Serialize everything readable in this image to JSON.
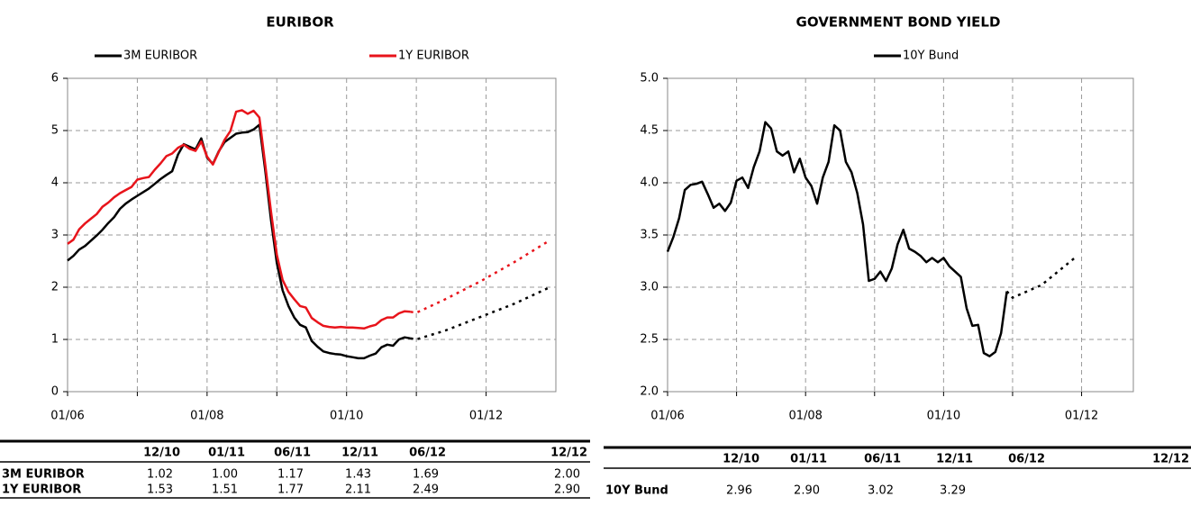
{
  "chart_data": [
    {
      "type": "line",
      "title": "EURIBOR",
      "x": [
        "01/06",
        "02/06",
        "03/06",
        "04/06",
        "05/06",
        "06/06",
        "07/06",
        "08/06",
        "09/06",
        "10/06",
        "11/06",
        "12/06",
        "01/07",
        "02/07",
        "03/07",
        "04/07",
        "05/07",
        "06/07",
        "07/07",
        "08/07",
        "09/07",
        "10/07",
        "11/07",
        "12/07",
        "01/08",
        "02/08",
        "03/08",
        "04/08",
        "05/08",
        "06/08",
        "07/08",
        "08/08",
        "09/08",
        "10/08",
        "11/08",
        "12/08",
        "01/09",
        "02/09",
        "03/09",
        "04/09",
        "05/09",
        "06/09",
        "07/09",
        "08/09",
        "09/09",
        "10/09",
        "11/09",
        "12/09",
        "01/10",
        "02/10",
        "03/10",
        "04/10",
        "05/10",
        "06/10",
        "07/10",
        "08/10",
        "09/10",
        "10/10",
        "11/10",
        "12/10"
      ],
      "series": [
        {
          "name": "3M EURIBOR",
          "color": "#000000",
          "values": [
            2.51,
            2.6,
            2.72,
            2.79,
            2.89,
            2.99,
            3.1,
            3.23,
            3.34,
            3.5,
            3.6,
            3.68,
            3.75,
            3.82,
            3.89,
            3.98,
            4.07,
            4.15,
            4.22,
            4.54,
            4.74,
            4.69,
            4.64,
            4.85,
            4.48,
            4.36,
            4.6,
            4.78,
            4.86,
            4.94,
            4.96,
            4.97,
            5.02,
            5.11,
            4.24,
            3.29,
            2.46,
            1.94,
            1.64,
            1.42,
            1.28,
            1.23,
            0.97,
            0.86,
            0.77,
            0.74,
            0.72,
            0.71,
            0.68,
            0.66,
            0.64,
            0.64,
            0.69,
            0.73,
            0.85,
            0.9,
            0.88,
            1.0,
            1.04,
            1.02
          ],
          "forecast_values": [
            1.02,
            1.0,
            1.17,
            1.43,
            1.69,
            2.0
          ],
          "forecast_value_labels": [
            "1.02",
            "1.00",
            "1.17",
            "1.43",
            "1.69",
            "2.00"
          ]
        },
        {
          "name": "1Y EURIBOR",
          "color": "#e8141b",
          "values": [
            2.83,
            2.91,
            3.11,
            3.22,
            3.31,
            3.4,
            3.54,
            3.62,
            3.72,
            3.8,
            3.86,
            3.92,
            4.06,
            4.09,
            4.11,
            4.25,
            4.37,
            4.51,
            4.56,
            4.67,
            4.73,
            4.65,
            4.61,
            4.79,
            4.5,
            4.35,
            4.59,
            4.82,
            4.99,
            5.36,
            5.39,
            5.32,
            5.38,
            5.25,
            4.35,
            3.45,
            2.62,
            2.14,
            1.91,
            1.77,
            1.64,
            1.61,
            1.41,
            1.33,
            1.26,
            1.24,
            1.23,
            1.24,
            1.23,
            1.23,
            1.22,
            1.21,
            1.25,
            1.28,
            1.37,
            1.42,
            1.42,
            1.5,
            1.54,
            1.53
          ],
          "forecast_values": [
            1.53,
            1.51,
            1.77,
            2.11,
            2.49,
            2.9
          ],
          "forecast_value_labels": [
            "1.53",
            "1.51",
            "1.77",
            "2.11",
            "2.49",
            "2.90"
          ]
        }
      ],
      "forecast_x": [
        "12/10",
        "01/11",
        "06/11",
        "12/11",
        "06/12",
        "12/12"
      ],
      "xlim": [
        "01/06",
        "01/13"
      ],
      "xticks": [
        {
          "value": "01/06",
          "label": "01/06"
        },
        {
          "value": "01/07",
          "label": null
        },
        {
          "value": "01/08",
          "label": "01/08"
        },
        {
          "value": "01/09",
          "label": null
        },
        {
          "value": "01/10",
          "label": "01/10"
        },
        {
          "value": "01/11",
          "label": null
        },
        {
          "value": "01/12",
          "label": "01/12"
        }
      ],
      "ylim": [
        0,
        6
      ],
      "yticks": [
        0,
        1,
        2,
        3,
        4,
        5,
        6
      ],
      "grid": true
    },
    {
      "type": "line",
      "title": "GOVERNMENT BOND YIELD",
      "x": [
        "01/06",
        "02/06",
        "03/06",
        "04/06",
        "05/06",
        "06/06",
        "07/06",
        "08/06",
        "09/06",
        "10/06",
        "11/06",
        "12/06",
        "01/07",
        "02/07",
        "03/07",
        "04/07",
        "05/07",
        "06/07",
        "07/07",
        "08/07",
        "09/07",
        "10/07",
        "11/07",
        "12/07",
        "01/08",
        "02/08",
        "03/08",
        "04/08",
        "05/08",
        "06/08",
        "07/08",
        "08/08",
        "09/08",
        "10/08",
        "11/08",
        "12/08",
        "01/09",
        "02/09",
        "03/09",
        "04/09",
        "05/09",
        "06/09",
        "07/09",
        "08/09",
        "09/09",
        "10/09",
        "11/09",
        "12/09",
        "01/10",
        "02/10",
        "03/10",
        "04/10",
        "05/10",
        "06/10",
        "07/10",
        "08/10",
        "09/10",
        "10/10",
        "11/10",
        "12/10"
      ],
      "series": [
        {
          "name": "10Y Bund",
          "color": "#000000",
          "values": [
            3.34,
            3.48,
            3.66,
            3.93,
            3.98,
            3.99,
            4.01,
            3.89,
            3.76,
            3.8,
            3.73,
            3.81,
            4.02,
            4.05,
            3.95,
            4.15,
            4.3,
            4.58,
            4.52,
            4.3,
            4.26,
            4.3,
            4.1,
            4.23,
            4.05,
            3.97,
            3.8,
            4.05,
            4.2,
            4.55,
            4.5,
            4.2,
            4.1,
            3.9,
            3.6,
            3.06,
            3.08,
            3.15,
            3.06,
            3.18,
            3.41,
            3.55,
            3.37,
            3.34,
            3.3,
            3.24,
            3.28,
            3.24,
            3.28,
            3.2,
            3.15,
            3.1,
            2.8,
            2.63,
            2.64,
            2.37,
            2.34,
            2.38,
            2.56,
            2.96
          ],
          "forecast_values": [
            2.96,
            2.9,
            3.02,
            3.29,
            null,
            null
          ],
          "forecast_value_labels": [
            "2.96",
            "2.90",
            "3.02",
            "3.29",
            null,
            null
          ]
        }
      ],
      "forecast_x": [
        "12/10",
        "01/11",
        "06/11",
        "12/11",
        "06/12",
        "12/12"
      ],
      "xlim": [
        "01/06",
        "10/12"
      ],
      "xticks": [
        {
          "value": "01/06",
          "label": "01/06"
        },
        {
          "value": "01/07",
          "label": null
        },
        {
          "value": "01/08",
          "label": "01/08"
        },
        {
          "value": "01/09",
          "label": null
        },
        {
          "value": "01/10",
          "label": "01/10"
        },
        {
          "value": "01/11",
          "label": null
        },
        {
          "value": "01/12",
          "label": "01/12"
        }
      ],
      "ylim": [
        2,
        5
      ],
      "yticks": [
        {
          "value": 2,
          "label": "2.0"
        },
        {
          "value": 2.5,
          "label": "2.5"
        },
        {
          "value": 3,
          "label": "3.0"
        },
        {
          "value": 3.5,
          "label": "3.5"
        },
        {
          "value": 4,
          "label": "4.0"
        },
        {
          "value": 4.5,
          "label": "4.5"
        },
        {
          "value": 5,
          "label": "5.0"
        }
      ],
      "grid": true
    }
  ]
}
